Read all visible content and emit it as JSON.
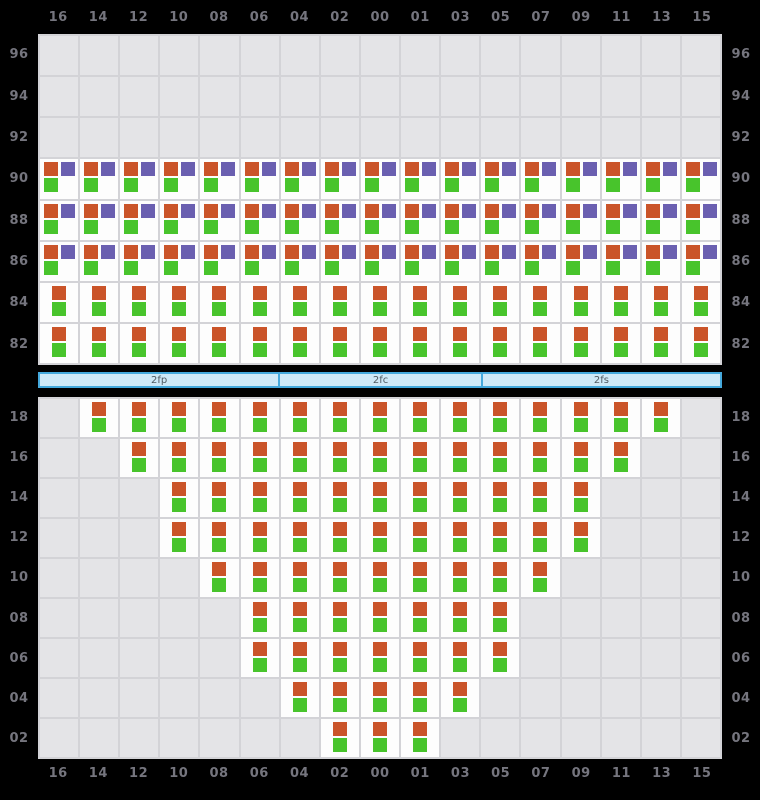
{
  "colors": {
    "background": "#000000",
    "grid_line": "#d3d3d7",
    "empty_cell": "#e4e4e7",
    "filled_cell": "#fdfdfd",
    "label_text": "#75757e",
    "orange_stitch": "#ca5429",
    "green_stitch": "#48c42c",
    "purple_stitch": "#6a5fb0",
    "bar_fill": "#cfe9f7",
    "bar_border": "#45a9dc",
    "bar_text": "#4e5a62"
  },
  "columns": [
    "16",
    "14",
    "12",
    "10",
    "08",
    "06",
    "04",
    "02",
    "00",
    "01",
    "03",
    "05",
    "07",
    "09",
    "11",
    "13",
    "15"
  ],
  "symbols": {
    "orange-purple-green": {
      "squares": [
        {
          "color": "orange_stitch",
          "slot": "top-left",
          "name": "orange-stitch-square"
        },
        {
          "color": "purple_stitch",
          "slot": "top-right",
          "name": "purple-stitch-square"
        },
        {
          "color": "green_stitch",
          "slot": "bottom-left",
          "name": "green-stitch-square"
        }
      ]
    },
    "orange-green": {
      "squares": [
        {
          "color": "orange_stitch",
          "slot": "top-center",
          "name": "orange-stitch-square"
        },
        {
          "color": "green_stitch",
          "slot": "bottom-center",
          "name": "green-stitch-square"
        }
      ]
    }
  },
  "separator_bar": {
    "segments": [
      {
        "label": "2fp",
        "col_span": 6
      },
      {
        "label": "2fc",
        "col_span": 5
      },
      {
        "label": "2fs",
        "col_span": 6
      }
    ]
  },
  "chart_data": [
    {
      "id": "upper-chart",
      "type": "heatmap",
      "title": "",
      "columns": [
        "16",
        "14",
        "12",
        "10",
        "08",
        "06",
        "04",
        "02",
        "00",
        "01",
        "03",
        "05",
        "07",
        "09",
        "11",
        "13",
        "15"
      ],
      "rows": [
        {
          "label": "96",
          "cell_type": "empty",
          "start_index": null,
          "end_index": null
        },
        {
          "label": "94",
          "cell_type": "empty",
          "start_index": null,
          "end_index": null
        },
        {
          "label": "92",
          "cell_type": "empty",
          "start_index": null,
          "end_index": null
        },
        {
          "label": "90",
          "cell_type": "orange-purple-green",
          "start_index": 0,
          "end_index": 16
        },
        {
          "label": "88",
          "cell_type": "orange-purple-green",
          "start_index": 0,
          "end_index": 16
        },
        {
          "label": "86",
          "cell_type": "orange-purple-green",
          "start_index": 0,
          "end_index": 16
        },
        {
          "label": "84",
          "cell_type": "orange-green",
          "start_index": 0,
          "end_index": 16
        },
        {
          "label": "82",
          "cell_type": "orange-green",
          "start_index": 0,
          "end_index": 16
        }
      ]
    },
    {
      "id": "lower-chart",
      "type": "heatmap",
      "title": "",
      "columns": [
        "16",
        "14",
        "12",
        "10",
        "08",
        "06",
        "04",
        "02",
        "00",
        "01",
        "03",
        "05",
        "07",
        "09",
        "11",
        "13",
        "15"
      ],
      "rows": [
        {
          "label": "18",
          "cell_type": "orange-green",
          "start_index": 1,
          "end_index": 15
        },
        {
          "label": "16",
          "cell_type": "orange-green",
          "start_index": 2,
          "end_index": 14
        },
        {
          "label": "14",
          "cell_type": "orange-green",
          "start_index": 3,
          "end_index": 13
        },
        {
          "label": "12",
          "cell_type": "orange-green",
          "start_index": 3,
          "end_index": 13
        },
        {
          "label": "10",
          "cell_type": "orange-green",
          "start_index": 4,
          "end_index": 12
        },
        {
          "label": "08",
          "cell_type": "orange-green",
          "start_index": 5,
          "end_index": 11
        },
        {
          "label": "06",
          "cell_type": "orange-green",
          "start_index": 5,
          "end_index": 11
        },
        {
          "label": "04",
          "cell_type": "orange-green",
          "start_index": 6,
          "end_index": 10
        },
        {
          "label": "02",
          "cell_type": "orange-green",
          "start_index": 7,
          "end_index": 9
        }
      ]
    }
  ]
}
